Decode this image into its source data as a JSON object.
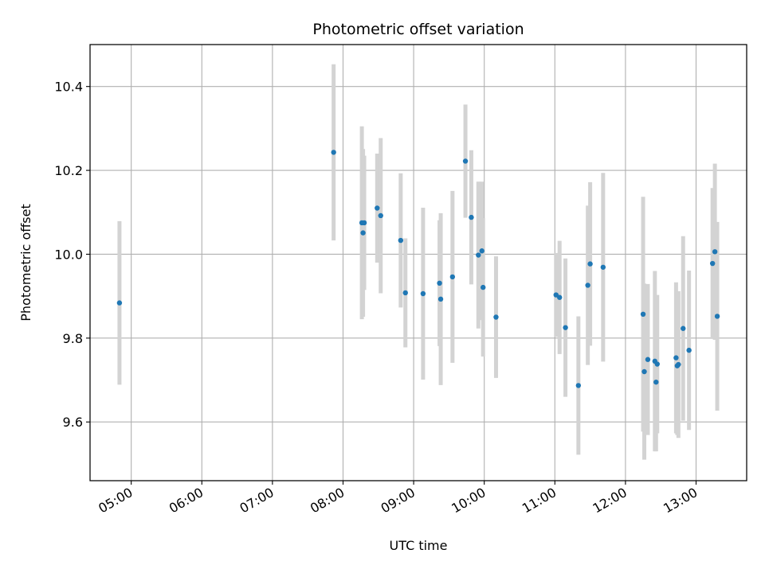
{
  "chart_data": {
    "type": "scatter",
    "title": "Photometric offset variation",
    "xlabel": "UTC time",
    "ylabel": "Photometric offset",
    "xlim": [
      "04:25",
      "13:43"
    ],
    "ylim": [
      9.46,
      10.5
    ],
    "x_ticks": [
      "05:00",
      "06:00",
      "07:00",
      "08:00",
      "09:00",
      "10:00",
      "11:00",
      "12:00",
      "13:00"
    ],
    "y_ticks": [
      9.6,
      9.8,
      10.0,
      10.2,
      10.4
    ],
    "grid": true,
    "colors": {
      "marker": "#1f77b4",
      "errorbar": "#d3d3d3",
      "grid": "#b0b0b0"
    },
    "points": [
      {
        "t": "04:50",
        "y": 9.884,
        "err": 0.195
      },
      {
        "t": "07:52",
        "y": 10.243,
        "err": 0.21
      },
      {
        "t": "08:16",
        "y": 10.075,
        "err": 0.23
      },
      {
        "t": "08:17",
        "y": 10.051,
        "err": 0.2
      },
      {
        "t": "08:18",
        "y": 10.075,
        "err": 0.16
      },
      {
        "t": "08:29",
        "y": 10.11,
        "err": 0.13
      },
      {
        "t": "08:32",
        "y": 10.092,
        "err": 0.185
      },
      {
        "t": "08:49",
        "y": 10.033,
        "err": 0.16
      },
      {
        "t": "08:53",
        "y": 9.908,
        "err": 0.13
      },
      {
        "t": "09:08",
        "y": 9.906,
        "err": 0.205
      },
      {
        "t": "09:22",
        "y": 9.931,
        "err": 0.15
      },
      {
        "t": "09:23",
        "y": 9.893,
        "err": 0.205
      },
      {
        "t": "09:33",
        "y": 9.946,
        "err": 0.205
      },
      {
        "t": "09:44",
        "y": 10.222,
        "err": 0.135
      },
      {
        "t": "09:49",
        "y": 10.088,
        "err": 0.16
      },
      {
        "t": "09:55",
        "y": 9.998,
        "err": 0.175
      },
      {
        "t": "09:58",
        "y": 10.008,
        "err": 0.165
      },
      {
        "t": "09:59",
        "y": 9.921,
        "err": 0.165
      },
      {
        "t": "10:10",
        "y": 9.85,
        "err": 0.145
      },
      {
        "t": "11:01",
        "y": 9.903,
        "err": 0.1
      },
      {
        "t": "11:04",
        "y": 9.897,
        "err": 0.135
      },
      {
        "t": "11:09",
        "y": 9.825,
        "err": 0.165
      },
      {
        "t": "11:20",
        "y": 9.687,
        "err": 0.165
      },
      {
        "t": "11:28",
        "y": 9.926,
        "err": 0.19
      },
      {
        "t": "11:30",
        "y": 9.977,
        "err": 0.195
      },
      {
        "t": "11:41",
        "y": 9.969,
        "err": 0.225
      },
      {
        "t": "12:15",
        "y": 9.857,
        "err": 0.28
      },
      {
        "t": "12:16",
        "y": 9.72,
        "err": 0.21
      },
      {
        "t": "12:19",
        "y": 9.749,
        "err": 0.18
      },
      {
        "t": "12:25",
        "y": 9.745,
        "err": 0.215
      },
      {
        "t": "12:26",
        "y": 9.695,
        "err": 0.165
      },
      {
        "t": "12:27",
        "y": 9.738,
        "err": 0.165
      },
      {
        "t": "12:43",
        "y": 9.753,
        "err": 0.18
      },
      {
        "t": "12:44",
        "y": 9.734,
        "err": 0.165
      },
      {
        "t": "12:45",
        "y": 9.737,
        "err": 0.175
      },
      {
        "t": "12:49",
        "y": 9.823,
        "err": 0.22
      },
      {
        "t": "12:54",
        "y": 9.771,
        "err": 0.19
      },
      {
        "t": "13:14",
        "y": 9.978,
        "err": 0.18
      },
      {
        "t": "13:16",
        "y": 10.006,
        "err": 0.21
      },
      {
        "t": "13:18",
        "y": 9.852,
        "err": 0.225
      }
    ]
  }
}
